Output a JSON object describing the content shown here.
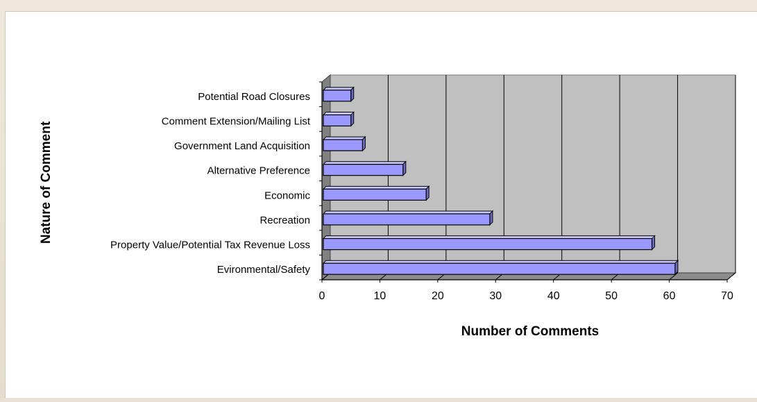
{
  "colors": {
    "bar_front": "#9999ff",
    "bar_top": "#c8c8ff",
    "bar_side": "#6b6bc0",
    "wall": "#c0c0c0",
    "floor": "#8c8c8c",
    "left_wall": "#808080",
    "grid": "#000000"
  },
  "chart_data": {
    "type": "bar",
    "orientation": "horizontal",
    "categories": [
      "Evironmental/Safety",
      "Property Value/Potential Tax Revenue Loss",
      "Recreation",
      "Economic",
      "Alternative Preference",
      "Government Land Acquisition",
      "Comment Extension/Mailing List",
      "Potential Road Closures"
    ],
    "values": [
      61,
      57,
      29,
      18,
      14,
      7,
      5,
      5
    ],
    "xlabel": "Number of Comments",
    "ylabel": "Nature of Comment",
    "xlim": [
      0,
      70
    ],
    "xticks": [
      0,
      10,
      20,
      30,
      40,
      50,
      60,
      70
    ],
    "tick_labels": [
      "0",
      "10",
      "20",
      "30",
      "40",
      "50",
      "60",
      "70"
    ],
    "grid": true,
    "legend": "none",
    "style": "3d"
  }
}
